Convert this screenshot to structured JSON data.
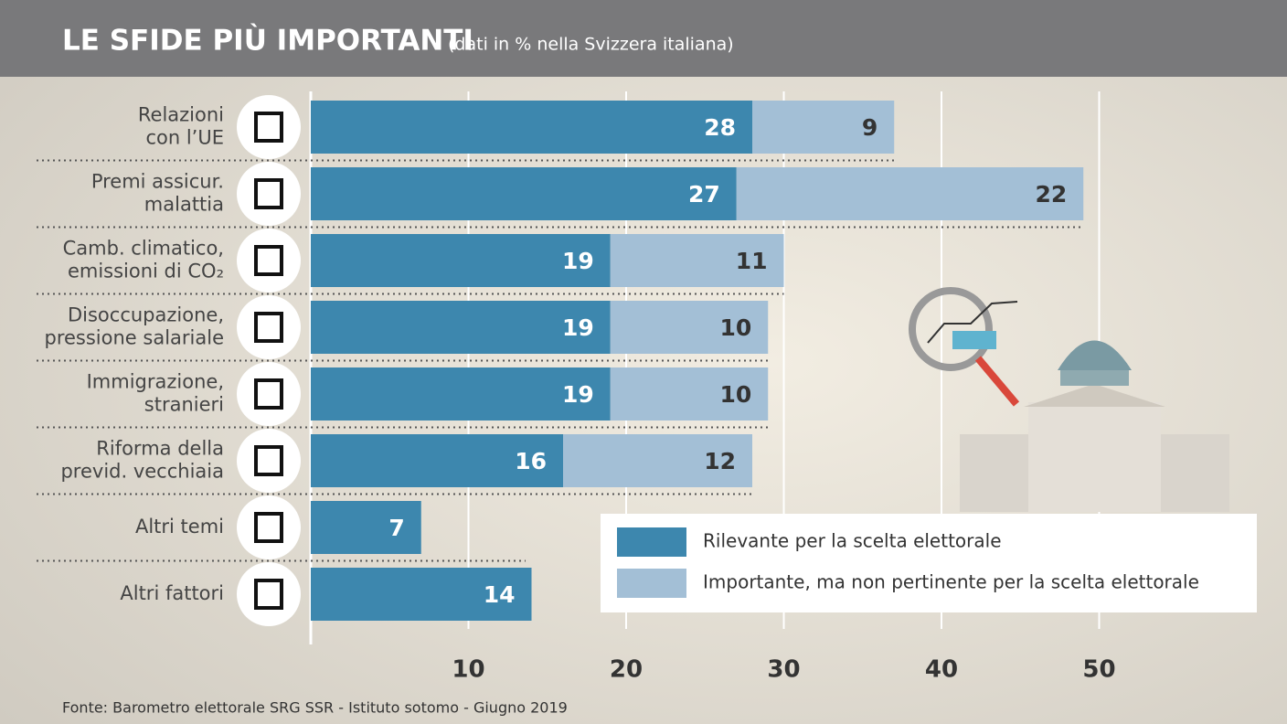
{
  "chart_data": {
    "type": "stacked-bar-horizontal",
    "title": "LE SFIDE PIÙ IMPORTANTI",
    "subtitle": "(dati in % nella Svizzera italiana)",
    "source": "Fonte: Barometro elettorale SRG SSR - Istituto sotomo - Giugno 2019",
    "categories": [
      "Relazioni\ncon l’UE",
      "Premi assicur.\nmalattia",
      "Camb. climatico,\nemissioni di CO₂",
      "Disoccupazione,\npressione salariale",
      "Immigrazione,\nstranieri",
      "Riforma della\nprevid. vecchiaia",
      "Altri temi",
      "Altri fattori"
    ],
    "series": [
      {
        "name": "Rilevante per la scelta elettorale",
        "color": "#3d87ae",
        "values": [
          28,
          27,
          19,
          19,
          19,
          16,
          7,
          14
        ]
      },
      {
        "name": "Importante, ma non pertinente per la scelta elettorale",
        "color": "#a3bfd6",
        "values": [
          9,
          22,
          11,
          10,
          10,
          12,
          null,
          null
        ]
      }
    ],
    "xlim": [
      0,
      55
    ],
    "xticks": [
      10,
      20,
      30,
      40,
      50
    ],
    "grid": true
  }
}
